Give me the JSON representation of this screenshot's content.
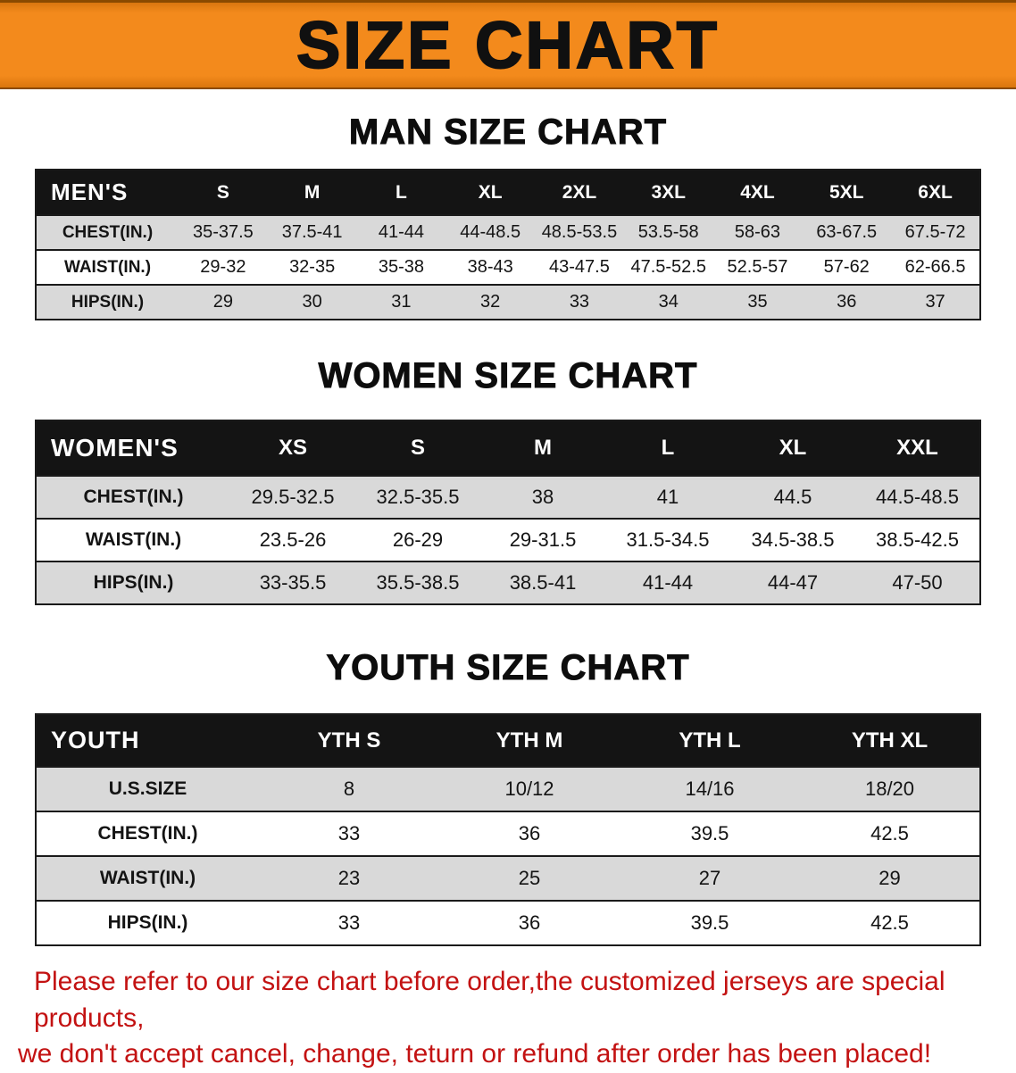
{
  "banner": {
    "title": "SIZE CHART",
    "bg_color": "#F38A1C",
    "text_color": "#101010"
  },
  "colors": {
    "table_header_bg": "#141414",
    "table_header_text": "#FFFFFF",
    "row_stripe_gray": "#D9D9D9",
    "footer_red": "#C31212"
  },
  "sections": [
    {
      "heading": "MAN SIZE CHART",
      "table": {
        "header": [
          "MEN'S",
          "S",
          "M",
          "L",
          "XL",
          "2XL",
          "3XL",
          "4XL",
          "5XL",
          "6XL"
        ],
        "rows": [
          [
            "CHEST(IN.)",
            "35-37.5",
            "37.5-41",
            "41-44",
            "44-48.5",
            "48.5-53.5",
            "53.5-58",
            "58-63",
            "63-67.5",
            "67.5-72"
          ],
          [
            "WAIST(IN.)",
            "29-32",
            "32-35",
            "35-38",
            "38-43",
            "43-47.5",
            "47.5-52.5",
            "52.5-57",
            "57-62",
            "62-66.5"
          ],
          [
            "HIPS(IN.)",
            "29",
            "30",
            "31",
            "32",
            "33",
            "34",
            "35",
            "36",
            "37"
          ]
        ]
      }
    },
    {
      "heading": "WOMEN SIZE CHART",
      "table": {
        "header": [
          "WOMEN'S",
          "XS",
          "S",
          "M",
          "L",
          "XL",
          "XXL"
        ],
        "rows": [
          [
            "CHEST(IN.)",
            "29.5-32.5",
            "32.5-35.5",
            "38",
            "41",
            "44.5",
            "44.5-48.5"
          ],
          [
            "WAIST(IN.)",
            "23.5-26",
            "26-29",
            "29-31.5",
            "31.5-34.5",
            "34.5-38.5",
            "38.5-42.5"
          ],
          [
            "HIPS(IN.)",
            "33-35.5",
            "35.5-38.5",
            "38.5-41",
            "41-44",
            "44-47",
            "47-50"
          ]
        ]
      }
    },
    {
      "heading": "YOUTH SIZE CHART",
      "table": {
        "header": [
          "YOUTH",
          "YTH S",
          "YTH M",
          "YTH L",
          "YTH XL"
        ],
        "rows": [
          [
            "U.S.SIZE",
            "8",
            "10/12",
            "14/16",
            "18/20"
          ],
          [
            "CHEST(IN.)",
            "33",
            "36",
            "39.5",
            "42.5"
          ],
          [
            "WAIST(IN.)",
            "23",
            "25",
            "27",
            "29"
          ],
          [
            "HIPS(IN.)",
            "33",
            "36",
            "39.5",
            "42.5"
          ]
        ]
      }
    }
  ],
  "footer": {
    "lines": [
      "Please refer to our size chart before order,the customized jerseys are special products,",
      "we don't accept cancel, change, teturn or refund after order has been placed!"
    ]
  }
}
